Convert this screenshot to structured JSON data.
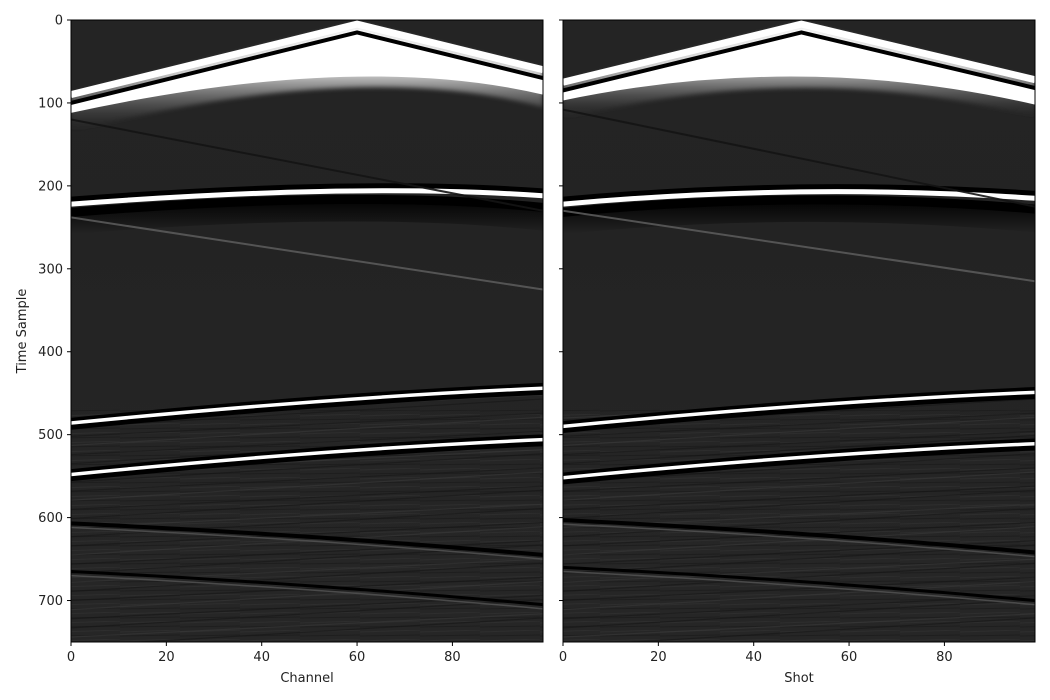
{
  "chart_data": [
    {
      "type": "heatmap",
      "panel": "left",
      "title": "",
      "xlabel": "Channel",
      "ylabel": "Time Sample",
      "xlim": [
        0,
        99
      ],
      "ylim": [
        750,
        0
      ],
      "xticks": [
        0,
        20,
        40,
        60,
        80
      ],
      "yticks": [
        0,
        100,
        200,
        300,
        400,
        500,
        600,
        700
      ],
      "colormap": "gray",
      "events": [
        {
          "kind": "direct-wave",
          "apex_x": 60,
          "apex_y": 5,
          "left_y": 90,
          "right_y": 60
        },
        {
          "kind": "direct-wave-trough",
          "apex_x": 60,
          "apex_y": 15,
          "left_y": 100,
          "right_y": 70
        },
        {
          "kind": "faint-linear",
          "x0": 0,
          "y0": 120,
          "x1": 99,
          "y1": 230
        },
        {
          "kind": "hyperbola-peak",
          "center_x": 60,
          "apex_y": 208,
          "left_y": 222,
          "right_y": 212
        },
        {
          "kind": "hyperbola-trough",
          "center_x": 60,
          "apex_y": 216,
          "left_y": 232,
          "right_y": 226
        },
        {
          "kind": "faint-linear",
          "x0": 0,
          "y0": 238,
          "x1": 99,
          "y1": 325
        },
        {
          "kind": "reflection",
          "x0": 0,
          "y0": 486,
          "x1": 99,
          "y1": 444
        },
        {
          "kind": "reflection",
          "x0": 0,
          "y0": 548,
          "x1": 99,
          "y1": 506
        },
        {
          "kind": "dark-event",
          "x0": 0,
          "y0": 607,
          "x1": 99,
          "y1": 645
        },
        {
          "kind": "dark-event",
          "x0": 0,
          "y0": 665,
          "x1": 99,
          "y1": 705
        }
      ]
    },
    {
      "type": "heatmap",
      "panel": "right",
      "title": "",
      "xlabel": "Shot",
      "ylabel": "",
      "xlim": [
        0,
        99
      ],
      "ylim": [
        750,
        0
      ],
      "xticks": [
        0,
        20,
        40,
        60,
        80
      ],
      "yticks": [
        0,
        100,
        200,
        300,
        400,
        500,
        600,
        700
      ],
      "colormap": "gray",
      "events": [
        {
          "kind": "direct-wave",
          "apex_x": 50,
          "apex_y": 5,
          "left_y": 75,
          "right_y": 72
        },
        {
          "kind": "direct-wave-trough",
          "apex_x": 50,
          "apex_y": 15,
          "left_y": 85,
          "right_y": 82
        },
        {
          "kind": "faint-linear",
          "x0": 0,
          "y0": 108,
          "x1": 99,
          "y1": 225
        },
        {
          "kind": "hyperbola-peak",
          "center_x": 50,
          "apex_y": 208,
          "left_y": 222,
          "right_y": 215
        },
        {
          "kind": "hyperbola-trough",
          "center_x": 50,
          "apex_y": 216,
          "left_y": 232,
          "right_y": 228
        },
        {
          "kind": "faint-linear",
          "x0": 0,
          "y0": 230,
          "x1": 99,
          "y1": 315
        },
        {
          "kind": "reflection",
          "x0": 0,
          "y0": 490,
          "x1": 99,
          "y1": 449
        },
        {
          "kind": "reflection",
          "x0": 0,
          "y0": 552,
          "x1": 99,
          "y1": 511
        },
        {
          "kind": "dark-event",
          "x0": 0,
          "y0": 603,
          "x1": 99,
          "y1": 642
        },
        {
          "kind": "dark-event",
          "x0": 0,
          "y0": 660,
          "x1": 99,
          "y1": 700
        }
      ]
    }
  ]
}
